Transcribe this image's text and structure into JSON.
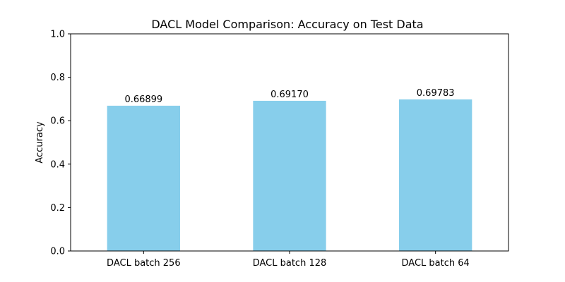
{
  "chart_data": {
    "type": "bar",
    "title": "DACL Model Comparison: Accuracy on Test Data",
    "xlabel": "",
    "ylabel": "Accuracy",
    "categories": [
      "DACL batch 256",
      "DACL batch 128",
      "DACL batch 64"
    ],
    "values": [
      0.66899,
      0.6917,
      0.69783
    ],
    "data_labels": [
      "0.66899",
      "0.69170",
      "0.69783"
    ],
    "ylim": [
      0,
      1.0
    ],
    "yticks": [
      0.0,
      0.2,
      0.4,
      0.6,
      0.8,
      1.0
    ],
    "ytick_labels": [
      "0.0",
      "0.2",
      "0.4",
      "0.6",
      "0.8",
      "1.0"
    ],
    "bar_color": "#87CEEB",
    "grid": false,
    "legend": false
  }
}
